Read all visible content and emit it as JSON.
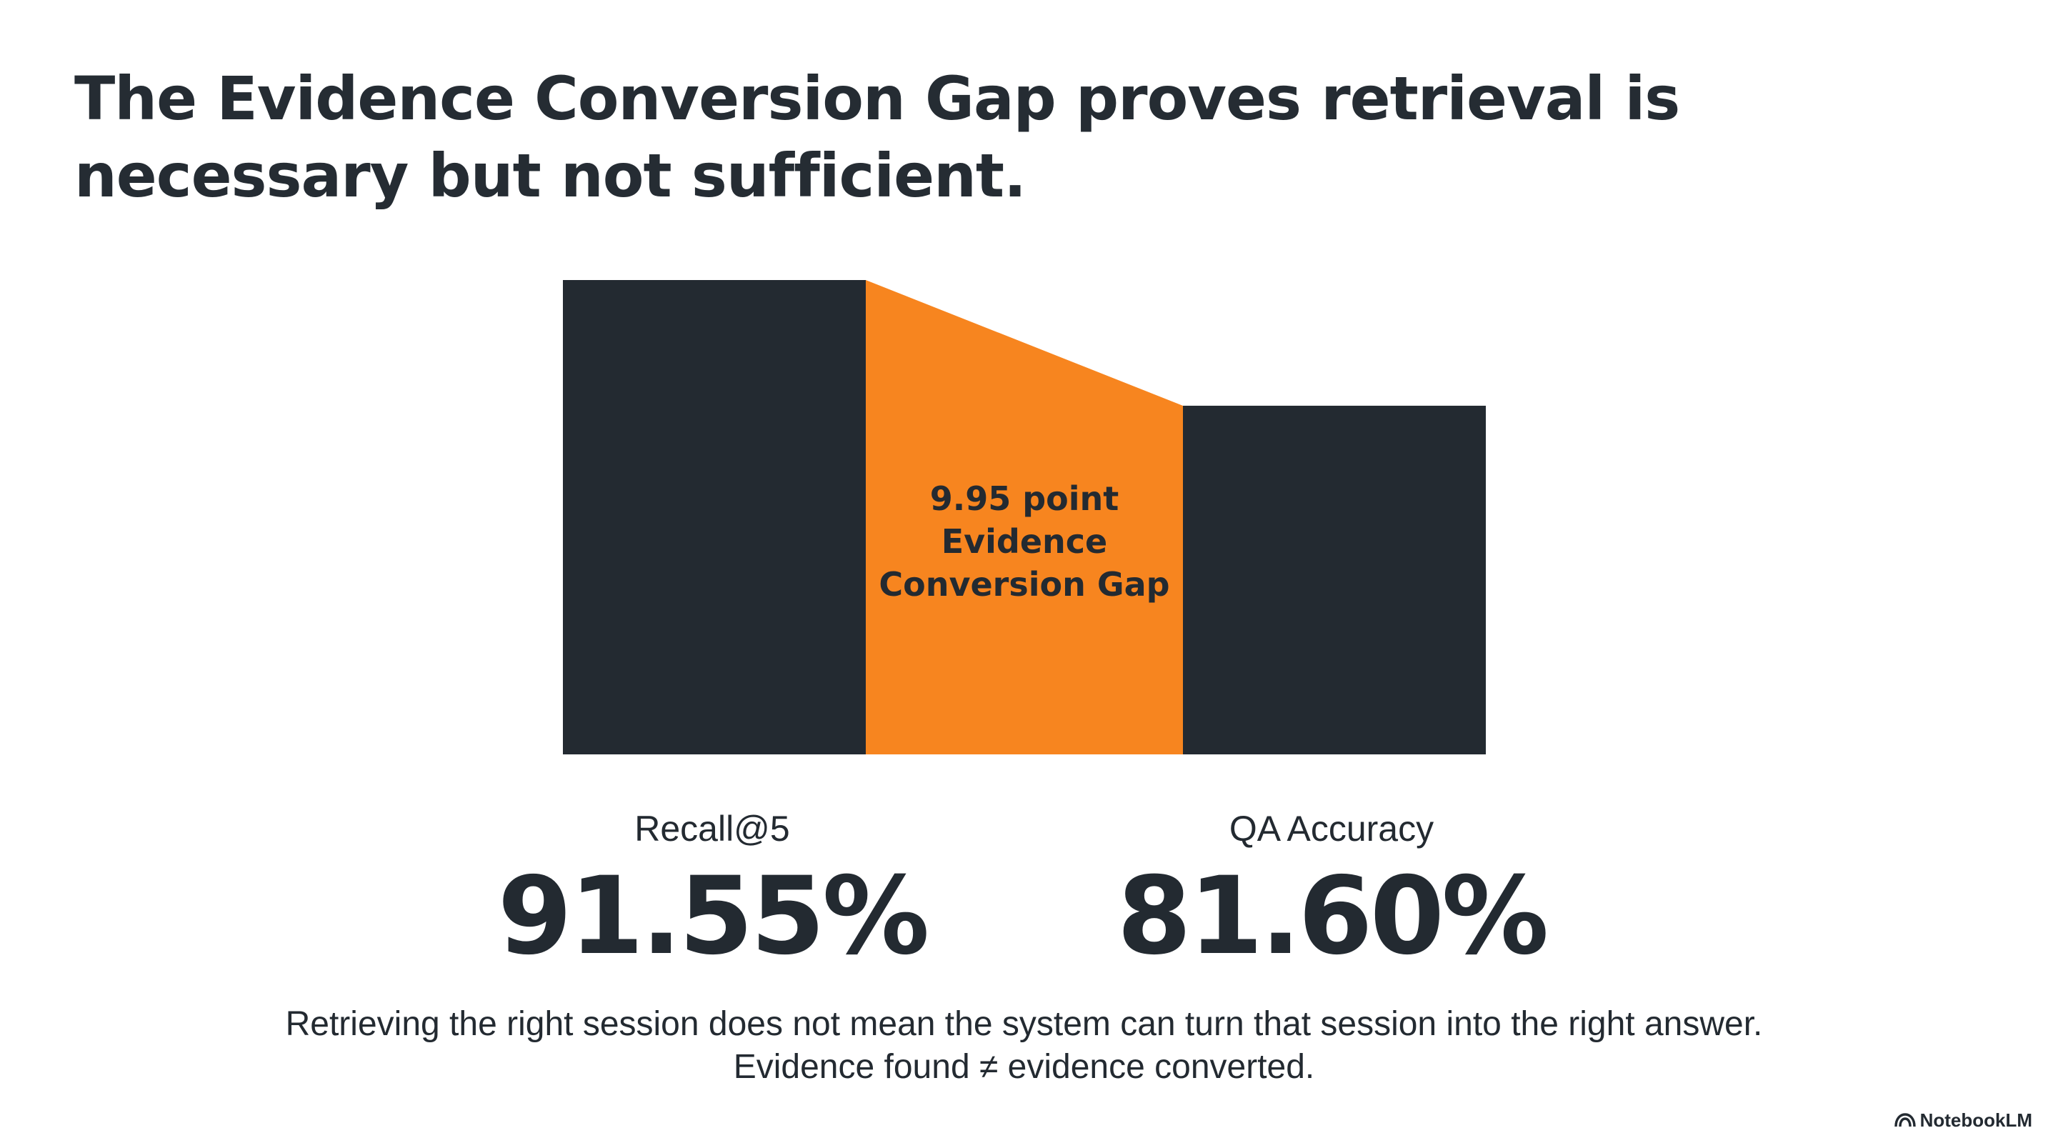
{
  "slide": {
    "title": "The Evidence Conversion Gap proves retrieval is necessary but not sufficient.",
    "footnote_line1": "Retrieving the right session does not mean the system can turn that session into the right answer.",
    "footnote_line2": "Evidence found ≠ evidence converted.",
    "brand": "NotebookLM"
  },
  "colors": {
    "bar": "#232a31",
    "gap": "#f7851f",
    "text": "#232a31"
  },
  "chart_data": {
    "type": "bar",
    "categories": [
      "Recall@5",
      "QA Accuracy"
    ],
    "values": [
      91.55,
      81.6
    ],
    "value_labels": [
      "91.55%",
      "81.60%"
    ],
    "gap": {
      "value": 9.95,
      "label_line1": "9.95 point",
      "label_line2": "Evidence",
      "label_line3": "Conversion Gap"
    },
    "title": "",
    "xlabel": "",
    "ylabel": "",
    "ylim": [
      54,
      91.55
    ],
    "grid": false
  }
}
